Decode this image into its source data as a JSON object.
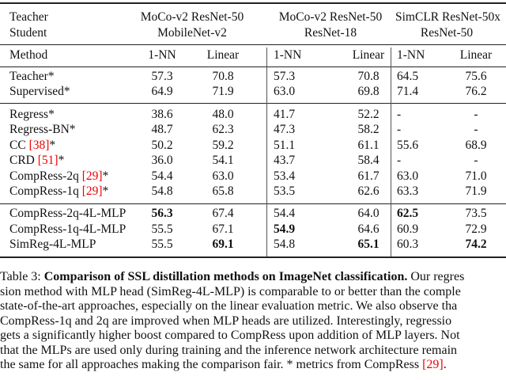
{
  "header": {
    "teacher_label": "Teacher",
    "student_label": "Student",
    "groups": [
      {
        "teacher": "MoCo-v2 ResNet-50",
        "student": "MobileNet-v2"
      },
      {
        "teacher": "MoCo-v2 ResNet-50",
        "student": "ResNet-18"
      },
      {
        "teacher": "SimCLR ResNet-50x",
        "student": "ResNet-50"
      }
    ],
    "method_label": "Method",
    "col_nn": "1-NN",
    "col_linear": "Linear"
  },
  "rows": [
    {
      "method": "Teacher*",
      "cite": "",
      "suffix": "",
      "v": [
        "57.3",
        "70.8",
        "57.3",
        "70.8",
        "64.5",
        "75.6"
      ],
      "bold": []
    },
    {
      "method": "Supervised*",
      "cite": "",
      "suffix": "",
      "v": [
        "64.9",
        "71.9",
        "63.0",
        "69.8",
        "71.4",
        "76.2"
      ],
      "bold": []
    },
    {
      "method": "Regress*",
      "cite": "",
      "suffix": "",
      "v": [
        "38.6",
        "48.0",
        "41.7",
        "52.2",
        "-",
        "-"
      ],
      "bold": []
    },
    {
      "method": "Regress-BN*",
      "cite": "",
      "suffix": "",
      "v": [
        "48.7",
        "62.3",
        "47.3",
        "58.2",
        "-",
        "-"
      ],
      "bold": []
    },
    {
      "method": "CC ",
      "cite": "[38]",
      "suffix": "*",
      "v": [
        "50.2",
        "59.2",
        "51.1",
        "61.1",
        "55.6",
        "68.9"
      ],
      "bold": []
    },
    {
      "method": "CRD ",
      "cite": "[51]",
      "suffix": "*",
      "v": [
        "36.0",
        "54.1",
        "43.7",
        "58.4",
        "-",
        "-"
      ],
      "bold": []
    },
    {
      "method": "CompRess-2q ",
      "cite": "[29]",
      "suffix": "*",
      "v": [
        "54.4",
        "63.0",
        "53.4",
        "61.7",
        "63.0",
        "71.0"
      ],
      "bold": []
    },
    {
      "method": "CompRess-1q ",
      "cite": "[29]",
      "suffix": "*",
      "v": [
        "54.8",
        "65.8",
        "53.5",
        "62.6",
        "63.3",
        "71.9"
      ],
      "bold": []
    },
    {
      "method": "CompRess-2q-4L-MLP",
      "cite": "",
      "suffix": "",
      "v": [
        "56.3",
        "67.4",
        "54.4",
        "64.0",
        "62.5",
        "73.5"
      ],
      "bold": [
        0,
        4
      ]
    },
    {
      "method": "CompRess-1q-4L-MLP",
      "cite": "",
      "suffix": "",
      "v": [
        "55.5",
        "67.1",
        "54.9",
        "64.6",
        "60.9",
        "72.9"
      ],
      "bold": [
        2
      ]
    },
    {
      "method": "SimReg-4L-MLP",
      "cite": "",
      "suffix": "",
      "v": [
        "55.5",
        "69.1",
        "54.8",
        "65.1",
        "60.3",
        "74.2"
      ],
      "bold": [
        1,
        3,
        5
      ]
    }
  ],
  "caption": {
    "label": "Table 3: ",
    "bold_title": "Comparison of SSL distillation methods on ImageNet classification.",
    "line1_rest": " Our regres",
    "lines": [
      "sion method with MLP head (SimReg-4L-MLP) is comparable to or better than the comple",
      "state-of-the-art approaches, especially on the linear evaluation metric. We also observe tha",
      "CompRess-1q and 2q are improved when MLP heads are utilized.  Interestingly, regressio",
      "gets a significantly higher boost compared to CompRess upon addition of MLP layers. Not",
      "that the MLPs are used only during training and the inference network architecture remain"
    ],
    "last_line": "the same for all approaches making the comparison fair. * metrics from CompRess ",
    "last_cite": "[29]",
    "last_end": "."
  }
}
